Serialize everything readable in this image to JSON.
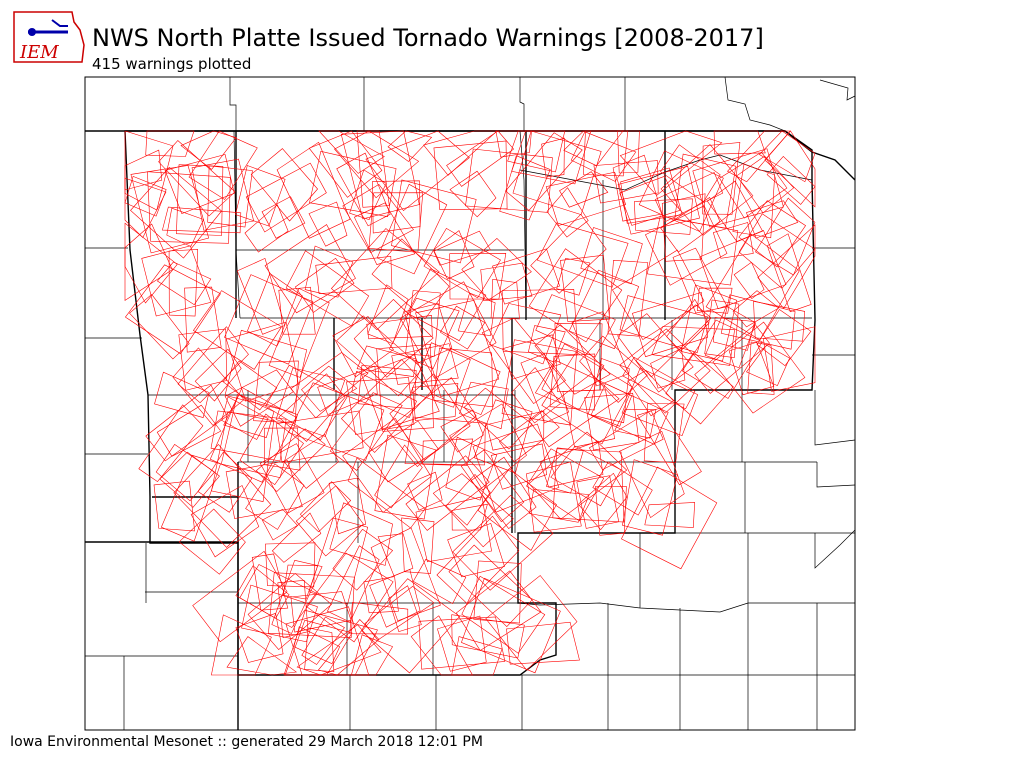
{
  "header": {
    "logo_text": "IEM",
    "title": "NWS North Platte Issued Tornado Warnings [2008-2017]",
    "subtitle": "415 warnings plotted"
  },
  "footer": {
    "text": "Iowa Environmental Mesonet :: generated 29 March 2018 12:01 PM"
  }
}
